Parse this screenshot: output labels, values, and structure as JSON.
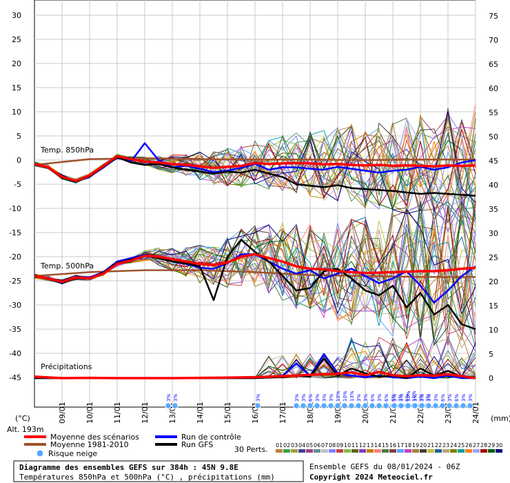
{
  "chart_data": {
    "type": "line",
    "left_axis": {
      "unit_label": "(°C)",
      "ticks": [
        "30",
        "25",
        "20",
        "15",
        "10",
        "5",
        "0",
        "-5",
        "-10",
        "-15",
        "-20",
        "-25",
        "-30",
        "-35",
        "-40",
        "-45"
      ],
      "range": [
        -45,
        30
      ]
    },
    "right_axis": {
      "unit_label": "(mm)",
      "ticks": [
        "75",
        "70",
        "65",
        "60",
        "55",
        "50",
        "45",
        "40",
        "35",
        "30",
        "25",
        "20",
        "15",
        "10",
        "5",
        "0"
      ],
      "range": [
        0,
        75
      ]
    },
    "x_ticks": [
      "09/01",
      "10/01",
      "11/01",
      "12/01",
      "13/01",
      "14/01",
      "15/01",
      "16/01",
      "17/01",
      "18/01",
      "19/01",
      "20/01",
      "21/01",
      "22/01",
      "23/01",
      "24/01"
    ],
    "altitude_label": "Alt. 193m",
    "section_labels": {
      "t850": "Temp. 850hPa",
      "t500": "Temp. 500hPa",
      "precip": "Précipitations"
    },
    "series": [
      {
        "name": "Moyenne des scénarios",
        "color": "#ff0000",
        "block": "t850",
        "x": [
          0,
          0.5,
          1,
          1.5,
          2,
          2.5,
          3,
          3.5,
          4,
          4.5,
          5,
          5.5,
          6,
          6.5,
          7,
          7.5,
          8,
          8.5,
          9,
          9.5,
          10,
          10.5,
          11,
          11.5,
          12,
          12.5,
          13,
          13.5,
          14,
          14.5,
          15,
          15.5,
          16
        ],
        "y": [
          -0.8,
          -1.5,
          -3.5,
          -4.3,
          -3.2,
          -1.2,
          0.8,
          0.2,
          -0.3,
          -0.5,
          -0.8,
          -1,
          -1.3,
          -1.6,
          -1.4,
          -1.2,
          -0.6,
          -0.8,
          -0.7,
          -0.6,
          -0.7,
          -0.9,
          -0.8,
          -1,
          -1.1,
          -1,
          -1.2,
          -1.1,
          -1.2,
          -1.3,
          -1.1,
          -1.2,
          -1.1
        ]
      },
      {
        "name": "Moyenne 1981-2010",
        "color": "#a0522d",
        "block": "t850",
        "x": [
          0,
          2,
          4,
          6,
          8,
          10,
          12,
          14,
          16
        ],
        "y": [
          -1,
          0.2,
          0.4,
          0.2,
          0.1,
          0.1,
          0,
          0.1,
          0.1
        ]
      },
      {
        "name": "Run de contrôle",
        "color": "#0000ff",
        "block": "t850",
        "x": [
          0,
          0.5,
          1,
          1.5,
          2,
          2.5,
          3,
          3.5,
          4,
          4.5,
          5,
          5.5,
          6,
          6.5,
          7,
          7.5,
          8,
          8.5,
          9,
          9.5,
          10,
          10.5,
          11,
          11.5,
          12,
          12.5,
          13,
          13.5,
          14,
          14.5,
          15,
          15.5,
          16
        ],
        "y": [
          -0.9,
          -1.6,
          -3.7,
          -4.4,
          -3.3,
          -1.4,
          0.5,
          -0.3,
          3.5,
          0,
          -1.5,
          -1.2,
          -1.8,
          -2.5,
          -2.2,
          -1.6,
          -0.8,
          -2,
          -1.5,
          -1.5,
          -1.8,
          -2,
          -1.4,
          -1.8,
          -2.2,
          -2.6,
          -2.2,
          -2,
          -1.4,
          -2,
          -1.5,
          -0.5,
          0
        ]
      },
      {
        "name": "Run GFS",
        "color": "#000000",
        "block": "t850",
        "x": [
          0,
          0.5,
          1,
          1.5,
          2,
          2.5,
          3,
          3.5,
          4,
          4.5,
          5,
          5.5,
          6,
          6.5,
          7,
          7.5,
          8,
          8.5,
          9,
          9.5,
          10,
          10.5,
          11,
          11.5,
          12,
          12.5,
          13,
          13.5,
          14,
          14.5,
          15,
          15.5,
          16
        ],
        "y": [
          -0.9,
          -1.6,
          -3.7,
          -4.5,
          -3.3,
          -1.3,
          0.6,
          -0.5,
          -1,
          -0.8,
          -1.5,
          -2,
          -2.4,
          -2.8,
          -2.4,
          -2.6,
          -2,
          -2.8,
          -3.5,
          -5,
          -5.3,
          -5.6,
          -5.2,
          -5.8,
          -6,
          -6.2,
          -6.4,
          -6.7,
          -7,
          -6.8,
          -7,
          -7.2,
          -7.4
        ]
      },
      {
        "name": "Moyenne des scénarios",
        "color": "#ff0000",
        "block": "t500",
        "x": [
          0,
          0.5,
          1,
          1.5,
          2,
          2.5,
          3,
          3.5,
          4,
          4.5,
          5,
          5.5,
          6,
          6.5,
          7,
          7.5,
          8,
          8.5,
          9,
          9.5,
          10,
          10.5,
          11,
          11.5,
          12,
          12.5,
          13,
          13.5,
          14,
          14.5,
          15,
          15.5,
          16
        ],
        "y": [
          -24,
          -24.5,
          -25.2,
          -24.3,
          -24.5,
          -23.5,
          -21.5,
          -20.8,
          -19.8,
          -20,
          -20.5,
          -21,
          -21.5,
          -21.8,
          -21.2,
          -20,
          -19.5,
          -20.3,
          -21,
          -22,
          -22.5,
          -22.6,
          -23,
          -23.2,
          -23.4,
          -23.3,
          -23.2,
          -23.1,
          -23,
          -23,
          -22.8,
          -22.5,
          -22.3
        ]
      },
      {
        "name": "Moyenne 1981-2010",
        "color": "#a0522d",
        "block": "t500",
        "x": [
          0,
          2,
          4,
          6,
          8,
          10,
          12,
          14,
          16
        ],
        "y": [
          -24,
          -23.2,
          -22.8,
          -22.8,
          -23.2,
          -23.8,
          -24,
          -24.2,
          -24.2
        ]
      },
      {
        "name": "Run de contrôle",
        "color": "#0000ff",
        "block": "t500",
        "x": [
          0,
          0.5,
          1,
          1.5,
          2,
          2.5,
          3,
          3.5,
          4,
          4.5,
          5,
          5.5,
          6,
          6.5,
          7,
          7.5,
          8,
          8.5,
          9,
          9.5,
          10,
          10.5,
          11,
          11.5,
          12,
          12.5,
          13,
          13.5,
          14,
          14.5,
          15,
          15.5,
          16
        ],
        "y": [
          -24,
          -24.6,
          -25.5,
          -24.2,
          -24.3,
          -23.2,
          -21,
          -20.3,
          -19.6,
          -20.2,
          -21,
          -21.5,
          -22.3,
          -22.5,
          -21.4,
          -19.5,
          -19.5,
          -21,
          -22.5,
          -23.5,
          -22.8,
          -24.5,
          -23.5,
          -22.5,
          -24,
          -25.5,
          -24.5,
          -23,
          -26,
          -29.5,
          -27,
          -24,
          -22
        ]
      },
      {
        "name": "Run GFS",
        "color": "#000000",
        "block": "t500",
        "x": [
          0,
          0.5,
          1,
          1.5,
          2,
          2.5,
          3,
          3.5,
          4,
          4.5,
          5,
          5.5,
          6,
          6.5,
          7,
          7.5,
          8,
          8.5,
          9,
          9.5,
          10,
          10.5,
          11,
          11.5,
          12,
          12.5,
          13,
          13.5,
          14,
          14.5,
          15,
          15.5,
          16
        ],
        "y": [
          -24,
          -24.6,
          -25.4,
          -24.4,
          -24.5,
          -23.3,
          -21.3,
          -20.6,
          -19.8,
          -20.3,
          -21,
          -21.4,
          -22,
          -29,
          -20,
          -16.5,
          -19,
          -21,
          -24,
          -27,
          -26.5,
          -23,
          -22.5,
          -24.5,
          -27,
          -28,
          -26,
          -30.5,
          -27.5,
          -32,
          -30,
          -34,
          -35
        ]
      },
      {
        "name": "Moyenne des scénarios",
        "color": "#ff0000",
        "block": "precip",
        "x": [
          0,
          1,
          2,
          3,
          4,
          5,
          6,
          7,
          8,
          9,
          10,
          11,
          11.5,
          12,
          12.5,
          13,
          13.5,
          14,
          14.5,
          15,
          15.5,
          16
        ],
        "y": [
          0.3,
          0,
          0.05,
          0,
          0,
          0,
          0.05,
          0.1,
          0.2,
          0.4,
          0.7,
          0.9,
          1.2,
          0.6,
          1.3,
          0.6,
          0.4,
          0.6,
          0.5,
          0.8,
          0.4,
          0
        ]
      },
      {
        "name": "Run de contrôle",
        "color": "#0000ff",
        "block": "precip",
        "x": [
          0,
          2,
          4,
          6,
          8,
          9,
          9.5,
          10,
          10.5,
          11,
          11.5,
          12,
          12.5,
          13,
          13.5,
          14,
          14.5,
          15,
          15.5,
          16
        ],
        "y": [
          0,
          0,
          0,
          0,
          0,
          0.5,
          3,
          0.5,
          5,
          1,
          0.5,
          0.2,
          0.5,
          0.2,
          0,
          0.3,
          0,
          0.5,
          0,
          0
        ]
      },
      {
        "name": "Run GFS",
        "color": "#000000",
        "block": "precip",
        "x": [
          0,
          2,
          4,
          6,
          8,
          9,
          9.5,
          10,
          10.5,
          11,
          11.5,
          12,
          12.5,
          13,
          13.5,
          14,
          14.5,
          15,
          15.5,
          16
        ],
        "y": [
          0,
          0,
          0,
          0,
          0,
          0.2,
          0.5,
          0.3,
          4,
          0.5,
          2,
          1,
          0.3,
          0.5,
          0,
          2,
          0.5,
          1.5,
          0.3,
          0
        ]
      }
    ],
    "snow_risk": [
      {
        "x": 4.85,
        "labels": [
          "3%",
          "3%"
        ]
      },
      {
        "x": 8.1,
        "labels": [
          "3%"
        ]
      },
      {
        "x": 9.5,
        "labels": [
          "3%",
          "3%",
          "6%",
          "3%",
          "3%",
          "3%",
          "10%",
          "10%",
          "13%",
          "3%",
          "3%",
          "6%",
          "3%",
          "6%",
          "6%",
          "3%",
          "6%",
          "10%",
          "3%",
          "3%"
        ]
      },
      {
        "x": 13.05,
        "labels": [
          "3%",
          "3%",
          "10%",
          "3%",
          "3%",
          "3%",
          "3%",
          "6%",
          "3%",
          "6%",
          "3%",
          "3%"
        ]
      }
    ],
    "legend": [
      {
        "label": "Moyenne des scénarios",
        "color": "#ff0000"
      },
      {
        "label": "Run de contrôle",
        "color": "#0000ff"
      },
      {
        "label": "Moyenne 1981-2010",
        "color": "#a0522d"
      },
      {
        "label": "Run GFS",
        "color": "#000000"
      },
      {
        "label": "Risque neige",
        "color": "#3399ff"
      }
    ],
    "perturbations": {
      "label": "30 Perts.",
      "numbers": [
        "01",
        "02",
        "03",
        "04",
        "05",
        "06",
        "07",
        "08",
        "09",
        "10",
        "11",
        "12",
        "13",
        "14",
        "15",
        "16",
        "17",
        "18",
        "19",
        "20",
        "21",
        "22",
        "23",
        "24",
        "25",
        "26",
        "27",
        "28",
        "29",
        "30"
      ],
      "colors": [
        "#c08040",
        "#40a040",
        "#a0a040",
        "#404090",
        "#a04080",
        "#609090",
        "#c0c0c0",
        "#8080ff",
        "#c04040",
        "#80c040",
        "#606020",
        "#8040c0",
        "#c08000",
        "#ff8080",
        "#408040",
        "#804040",
        "#60a0ff",
        "#c040c0",
        "#a08040",
        "#404040",
        "#c0c040",
        "#2060a0",
        "#c0a080",
        "#808000",
        "#00a0a0",
        "#ff8000",
        "#a0a0ff",
        "#a00000",
        "#006000",
        "#000080"
      ]
    }
  },
  "info_box": {
    "title": "Diagramme des ensembles GEFS sur 384h : 45N 9.8E",
    "subtitle": "Températures 850hPa et 500hPa (°C) , précipitations (mm)"
  },
  "footer": {
    "ensemble": "Ensemble GEFS du 08/01/2024 - 06Z",
    "copyright": "Copyright 2024 Meteociel.fr"
  }
}
